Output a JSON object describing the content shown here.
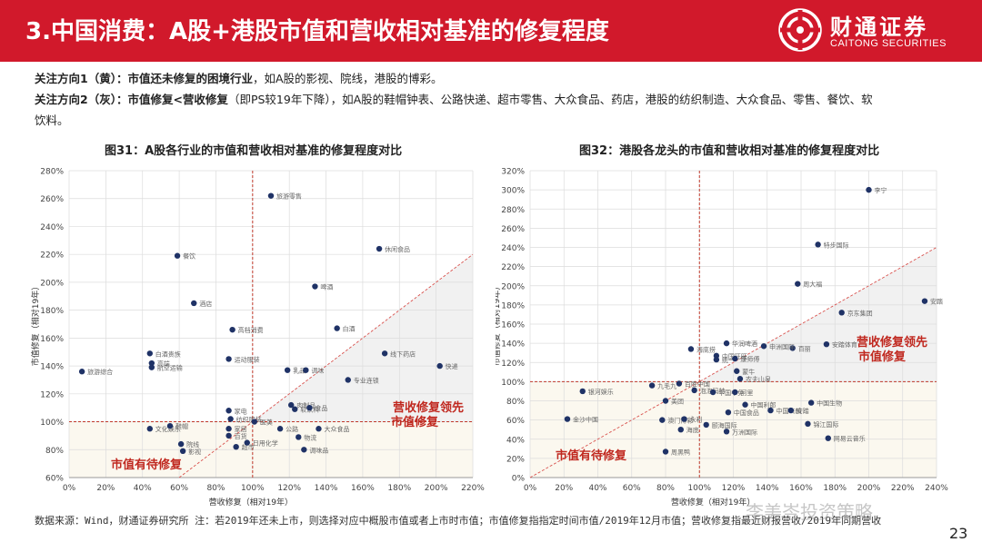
{
  "header": {
    "title": "3.中国消费：A股+港股市值和营收相对基准的修复程度",
    "logo_cn": "财通证券",
    "logo_en": "CAITONG SECURITIES"
  },
  "notes": {
    "line1_label": "关注方向1（黄）：",
    "line1_bold": "市值还未修复的困境行业",
    "line1_text": "，如A股的影视、院线，港股的博彩。",
    "line2_label": "关注方向2（灰）：",
    "line2_bold": "市值修复<营收修复",
    "line2_text": "（即PS较19年下降），如A股的鞋帽钟表、公路快递、超市零售、大众食品、药店，港股的纺织制造、大众食品、零售、餐饮、软",
    "line3_text": "饮料。"
  },
  "footer": {
    "text": "数据来源：Wind，财通证券研究所  注：若2019年还未上市，则选择对应中概股市值或者上市时市值；市值修复指指定时间市值/2019年12月市值；营收修复指最近财报营收/2019年同期营收",
    "page": "23",
    "watermark": "李美岑投资策略"
  },
  "chart_data": [
    {
      "type": "scatter",
      "title": "图31：A股各行业的市值和营收相对基准的修复程度对比",
      "xlabel": "营收修复（相对19年）",
      "ylabel": "市值修复（相对19年）",
      "xlim": [
        0,
        2.2
      ],
      "ylim": [
        0.6,
        2.8
      ],
      "xticks": [
        "0%",
        "20%",
        "40%",
        "60%",
        "80%",
        "100%",
        "120%",
        "140%",
        "160%",
        "180%",
        "200%",
        "220%"
      ],
      "yticks": [
        "60%",
        "80%",
        "100%",
        "120%",
        "140%",
        "160%",
        "180%",
        "200%",
        "220%",
        "240%",
        "260%",
        "280%"
      ],
      "grid": true,
      "reference_lines": {
        "x": 1.0,
        "y": 1.0,
        "diagonal": true
      },
      "annotations": [
        "营收修复领先市值修复",
        "市值有待修复"
      ],
      "point_color": "#1f3266",
      "points": [
        {
          "x": 0.07,
          "y": 1.36,
          "label": "旅游综合"
        },
        {
          "x": 0.44,
          "y": 1.49,
          "label": "白酒贵族"
        },
        {
          "x": 0.45,
          "y": 1.42,
          "label": "高端"
        },
        {
          "x": 0.45,
          "y": 1.39,
          "label": "航空运输"
        },
        {
          "x": 0.59,
          "y": 2.19,
          "label": "餐饮"
        },
        {
          "x": 0.68,
          "y": 1.85,
          "label": "酒店"
        },
        {
          "x": 0.89,
          "y": 1.66,
          "label": "高档消费"
        },
        {
          "x": 0.87,
          "y": 1.45,
          "label": "运动服装"
        },
        {
          "x": 1.1,
          "y": 2.62,
          "label": "旅游零售"
        },
        {
          "x": 1.34,
          "y": 1.97,
          "label": "啤酒"
        },
        {
          "x": 1.46,
          "y": 1.67,
          "label": "白酒"
        },
        {
          "x": 1.69,
          "y": 2.24,
          "label": "休闲食品"
        },
        {
          "x": 1.72,
          "y": 1.49,
          "label": "线下药店"
        },
        {
          "x": 1.19,
          "y": 1.37,
          "label": "乳品"
        },
        {
          "x": 1.29,
          "y": 1.37,
          "label": "调味"
        },
        {
          "x": 1.52,
          "y": 1.3,
          "label": "专业连锁"
        },
        {
          "x": 2.02,
          "y": 1.4,
          "label": "快递"
        },
        {
          "x": 0.44,
          "y": 0.95,
          "label": "文化娱乐"
        },
        {
          "x": 0.55,
          "y": 0.97,
          "label": "鞋帽"
        },
        {
          "x": 0.61,
          "y": 0.84,
          "label": "院线"
        },
        {
          "x": 0.62,
          "y": 0.79,
          "label": "影视"
        },
        {
          "x": 0.87,
          "y": 1.08,
          "label": "家电"
        },
        {
          "x": 0.88,
          "y": 1.02,
          "label": "纺织服装"
        },
        {
          "x": 0.87,
          "y": 0.95,
          "label": "家居"
        },
        {
          "x": 0.87,
          "y": 0.9,
          "label": "百货"
        },
        {
          "x": 0.91,
          "y": 0.82,
          "label": "超市"
        },
        {
          "x": 0.97,
          "y": 0.85,
          "label": "日用化学"
        },
        {
          "x": 1.01,
          "y": 1.0,
          "label": "医美"
        },
        {
          "x": 1.15,
          "y": 0.95,
          "label": "公路"
        },
        {
          "x": 1.21,
          "y": 1.12,
          "label": "肉制品"
        },
        {
          "x": 1.23,
          "y": 1.09,
          "label": "软饮料"
        },
        {
          "x": 1.31,
          "y": 1.1,
          "label": "食品"
        },
        {
          "x": 1.25,
          "y": 0.89,
          "label": "物流"
        },
        {
          "x": 1.28,
          "y": 0.8,
          "label": "调味品"
        },
        {
          "x": 1.36,
          "y": 0.95,
          "label": "大众食品"
        }
      ]
    },
    {
      "type": "scatter",
      "title": "图32：港股各龙头的市值和营收相对基准的修复程度对比",
      "xlabel": "营收修复（相对19年）",
      "ylabel": "市值修复（相对19年）",
      "xlim": [
        0,
        2.4
      ],
      "ylim": [
        0,
        3.2
      ],
      "xticks": [
        "0%",
        "20%",
        "40%",
        "60%",
        "80%",
        "100%",
        "120%",
        "140%",
        "160%",
        "180%",
        "200%",
        "220%",
        "240%"
      ],
      "yticks": [
        "0%",
        "20%",
        "40%",
        "60%",
        "80%",
        "100%",
        "120%",
        "140%",
        "160%",
        "180%",
        "200%",
        "220%",
        "240%",
        "260%",
        "280%",
        "300%",
        "320%"
      ],
      "grid": true,
      "reference_lines": {
        "x": 1.0,
        "y": 1.0,
        "diagonal": true
      },
      "annotations": [
        "营收修复领先市值修复",
        "市值有待修复"
      ],
      "point_color": "#1f3266",
      "points": [
        {
          "x": 2.0,
          "y": 3.0,
          "label": "李宁"
        },
        {
          "x": 1.7,
          "y": 2.43,
          "label": "特步国际"
        },
        {
          "x": 1.58,
          "y": 2.02,
          "label": "周大福"
        },
        {
          "x": 2.33,
          "y": 1.84,
          "label": "安踏"
        },
        {
          "x": 1.84,
          "y": 1.72,
          "label": "京东集团"
        },
        {
          "x": 1.75,
          "y": 1.39,
          "label": "安踏体育"
        },
        {
          "x": 1.55,
          "y": 1.35,
          "label": "百丽"
        },
        {
          "x": 0.95,
          "y": 1.34,
          "label": "海底捞"
        },
        {
          "x": 1.16,
          "y": 1.4,
          "label": "华润啤酒"
        },
        {
          "x": 1.38,
          "y": 1.37,
          "label": "申洲国际"
        },
        {
          "x": 1.1,
          "y": 1.27,
          "label": "中国旺旺"
        },
        {
          "x": 1.1,
          "y": 1.23,
          "label": "统一"
        },
        {
          "x": 1.21,
          "y": 1.24,
          "label": "康师傅"
        },
        {
          "x": 1.22,
          "y": 1.11,
          "label": "蒙牛"
        },
        {
          "x": 1.24,
          "y": 1.03,
          "label": "农夫山泉"
        },
        {
          "x": 0.31,
          "y": 0.9,
          "label": "银河娱乐"
        },
        {
          "x": 0.72,
          "y": 0.96,
          "label": "九毛九"
        },
        {
          "x": 0.8,
          "y": 0.8,
          "label": "美团"
        },
        {
          "x": 0.88,
          "y": 0.98,
          "label": "百胜中国"
        },
        {
          "x": 0.97,
          "y": 0.91,
          "label": "泡泡玛特"
        },
        {
          "x": 1.08,
          "y": 0.89,
          "label": "中国中免"
        },
        {
          "x": 1.21,
          "y": 0.89,
          "label": "阿里"
        },
        {
          "x": 0.22,
          "y": 0.61,
          "label": "金沙中国"
        },
        {
          "x": 0.78,
          "y": 0.6,
          "label": "澳门博彩"
        },
        {
          "x": 0.91,
          "y": 0.61,
          "label": "永利"
        },
        {
          "x": 0.89,
          "y": 0.5,
          "label": "海底"
        },
        {
          "x": 1.04,
          "y": 0.55,
          "label": "颐海国际"
        },
        {
          "x": 1.17,
          "y": 0.68,
          "label": "中国食品"
        },
        {
          "x": 1.27,
          "y": 0.76,
          "label": "中国利郎"
        },
        {
          "x": 1.42,
          "y": 0.7,
          "label": "中国飞鹤"
        },
        {
          "x": 1.54,
          "y": 0.7,
          "label": "安踏"
        },
        {
          "x": 1.66,
          "y": 0.78,
          "label": "中国生物"
        },
        {
          "x": 1.64,
          "y": 0.56,
          "label": "锦江国际"
        },
        {
          "x": 1.16,
          "y": 0.48,
          "label": "万洲国际"
        },
        {
          "x": 1.76,
          "y": 0.41,
          "label": "网易云音乐"
        },
        {
          "x": 0.8,
          "y": 0.27,
          "label": "周黑鸭"
        }
      ]
    }
  ]
}
